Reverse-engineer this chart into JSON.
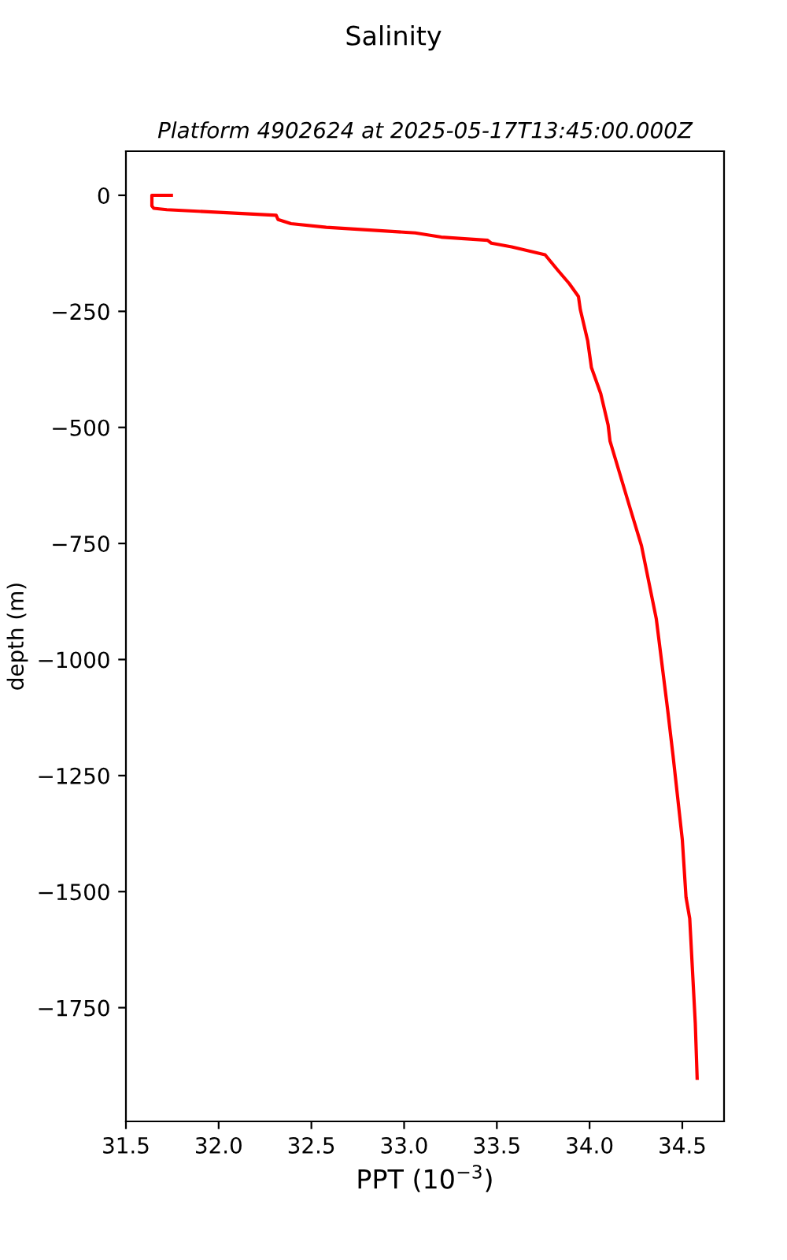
{
  "chart_data": {
    "type": "line",
    "title": "Salinity",
    "subtitle": "Platform 4902624 at 2025-05-17T13:45:00.000Z",
    "xlabel": "PPT (10$^{−3}$)",
    "ylabel": "depth (m)",
    "series": [
      {
        "color": "#ff0000",
        "x": [
          31.745,
          31.64,
          31.64,
          31.65,
          31.72,
          32.31,
          32.32,
          32.39,
          32.58,
          33.06,
          33.2,
          33.45,
          33.47,
          33.58,
          33.76,
          33.83,
          33.89,
          33.94,
          33.95,
          33.99,
          34.01,
          34.06,
          34.1,
          34.11,
          34.22,
          34.28,
          34.36,
          34.42,
          34.45,
          34.5,
          34.52,
          34.54,
          34.57,
          34.58
        ],
        "values": [
          0,
          0,
          -23,
          -28,
          -31,
          -43,
          -52,
          -61,
          -69,
          -81,
          -90,
          -97,
          -103,
          -111,
          -128,
          -162,
          -190,
          -218,
          -246,
          -314,
          -371,
          -427,
          -495,
          -529,
          -676,
          -755,
          -913,
          -1105,
          -1207,
          -1388,
          -1512,
          -1558,
          -1784,
          -1902
        ]
      }
    ],
    "xlim": [
      31.5,
      34.725
    ],
    "ylim": [
      -1995,
      95
    ],
    "xticks": [
      31.5,
      {
        "value": 32,
        "label": "32.0"
      },
      32.5,
      {
        "value": 33,
        "label": "33.0"
      },
      33.5,
      {
        "value": 34,
        "label": "34.0"
      },
      34.5
    ],
    "yticks": [
      0,
      -250,
      -500,
      -750,
      -1000,
      -1250,
      -1500,
      -1750
    ],
    "grid": false,
    "legend": false,
    "marker": "none",
    "line_style": "solid"
  }
}
